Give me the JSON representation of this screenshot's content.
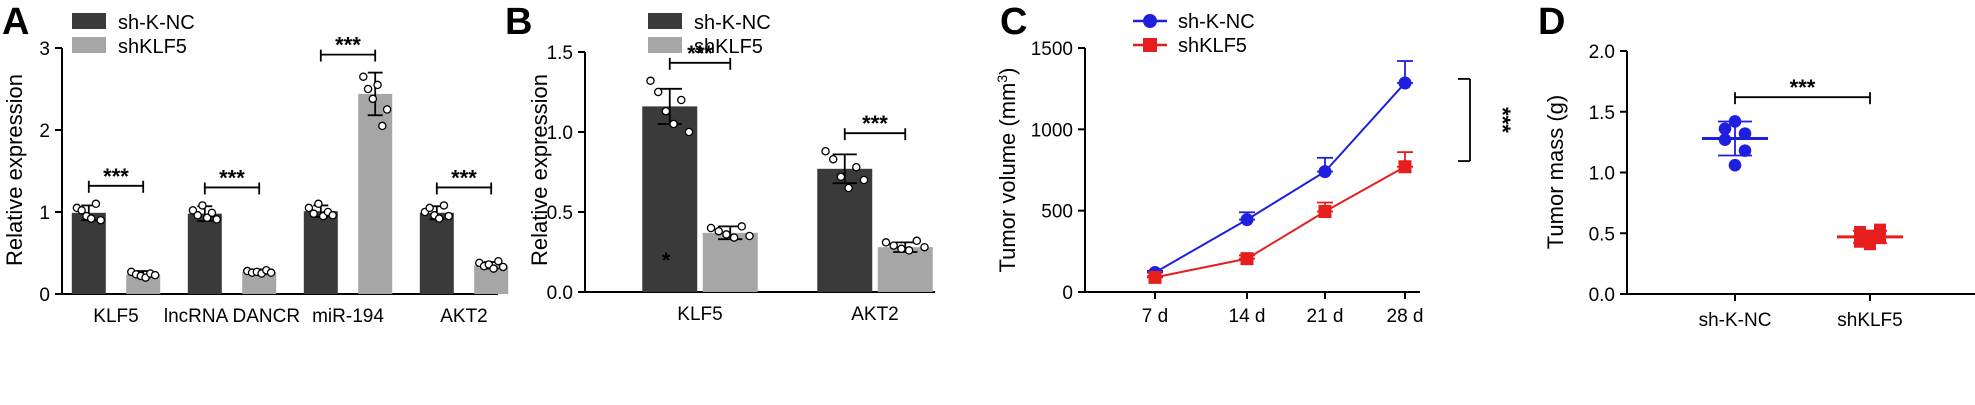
{
  "colors": {
    "sh_k_nc_bar": "#3a3a3a",
    "shklf5_bar": "#a6a6a6",
    "sh_k_nc_line": "#1f1fe0",
    "shklf5_line": "#e61e1e"
  },
  "chart_data": [
    {
      "panel": "A",
      "type": "bar",
      "ylabel": "Relative expression",
      "ylim": [
        0,
        3
      ],
      "yticks": [
        "0",
        "1",
        "2",
        "3"
      ],
      "categories": [
        "KLF5",
        "lncRNA DANCR",
        "miR-194",
        "AKT2"
      ],
      "series": [
        {
          "name": "sh-K-NC",
          "values": [
            0.99,
            0.98,
            1.01,
            0.99
          ],
          "err": [
            0.09,
            0.09,
            0.07,
            0.08
          ],
          "points": [
            [
              1.05,
              1.02,
              0.95,
              0.92,
              1.1,
              0.9
            ],
            [
              1.02,
              0.96,
              1.08,
              0.93,
              0.99,
              0.91
            ],
            [
              1.05,
              0.98,
              1.1,
              0.95,
              1.0,
              0.96
            ],
            [
              1.0,
              1.05,
              0.96,
              0.92,
              1.08,
              0.95
            ]
          ]
        },
        {
          "name": "shKLF5",
          "values": [
            0.24,
            0.27,
            2.44,
            0.35
          ],
          "err": [
            0.04,
            0.03,
            0.26,
            0.04
          ],
          "points": [
            [
              0.27,
              0.24,
              0.22,
              0.2,
              0.25,
              0.23
            ],
            [
              0.28,
              0.26,
              0.27,
              0.25,
              0.29,
              0.26
            ],
            [
              2.65,
              2.5,
              2.38,
              2.55,
              2.05,
              2.25
            ],
            [
              0.38,
              0.34,
              0.36,
              0.31,
              0.4,
              0.33
            ]
          ]
        }
      ],
      "significance": [
        "***",
        "***",
        "***",
        "***"
      ]
    },
    {
      "panel": "B",
      "type": "bar",
      "ylabel": "Relative expression",
      "ylim": [
        0,
        1.5
      ],
      "yticks": [
        "0.0",
        "0.5",
        "1.0",
        "1.5"
      ],
      "categories": [
        "KLF5",
        "AKT2"
      ],
      "series": [
        {
          "name": "sh-K-NC",
          "values": [
            1.16,
            0.77
          ],
          "err": [
            0.11,
            0.09
          ],
          "points": [
            [
              1.32,
              1.25,
              1.13,
              1.05,
              1.2,
              1.0
            ],
            [
              0.88,
              0.83,
              0.72,
              0.65,
              0.78,
              0.7
            ]
          ]
        },
        {
          "name": "shKLF5",
          "values": [
            0.37,
            0.28
          ],
          "err": [
            0.04,
            0.03
          ],
          "points": [
            [
              0.4,
              0.38,
              0.36,
              0.34,
              0.41,
              0.35
            ],
            [
              0.31,
              0.29,
              0.27,
              0.26,
              0.32,
              0.28
            ]
          ]
        }
      ],
      "significance": [
        "***",
        "***"
      ],
      "annotation": "*"
    },
    {
      "panel": "C",
      "type": "line",
      "ylabel": "Tumor volume (mm",
      "ylabel_sup": "3",
      "ylabel_end": ")",
      "ylim": [
        0,
        1500
      ],
      "yticks": [
        "0",
        "500",
        "1000",
        "1500"
      ],
      "categories": [
        "7 d",
        "14 d",
        "21 d",
        "28 d"
      ],
      "series": [
        {
          "name": "sh-K-NC",
          "values": [
            120,
            445,
            740,
            1285
          ],
          "err": [
            10,
            45,
            85,
            135
          ]
        },
        {
          "name": "shKLF5",
          "values": [
            90,
            205,
            495,
            770
          ],
          "err": [
            8,
            20,
            55,
            90
          ]
        }
      ],
      "significance": "***"
    },
    {
      "panel": "D",
      "type": "scatter",
      "ylabel": "Tumor mass (g)",
      "ylim": [
        0,
        2.0
      ],
      "yticks": [
        "0.0",
        "0.5",
        "1.0",
        "1.5",
        "2.0"
      ],
      "categories": [
        "sh-K-NC",
        "shKLF5"
      ],
      "series": [
        {
          "name": "sh-K-NC",
          "mean": 1.28,
          "sd": 0.14,
          "points": [
            1.42,
            1.36,
            1.32,
            1.27,
            1.18,
            1.06
          ],
          "jitter": [
            0,
            -1,
            1,
            -1,
            1,
            0
          ]
        },
        {
          "name": "shKLF5",
          "mean": 0.47,
          "sd": 0.05,
          "points": [
            0.53,
            0.51,
            0.48,
            0.46,
            0.43,
            0.41
          ],
          "jitter": [
            1,
            -1,
            0,
            1,
            -1,
            0
          ]
        }
      ],
      "significance": "***"
    }
  ]
}
